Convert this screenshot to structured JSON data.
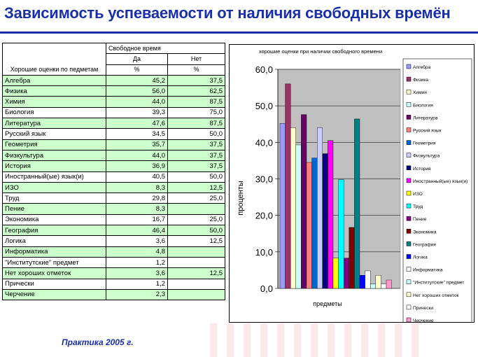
{
  "slide": {
    "title": "Зависимость успеваемости от наличия свободных времён",
    "footer": "Практика 2005 г."
  },
  "table": {
    "header_group": "Свободное время",
    "header_row_label": "Хорошие оценки по педметам",
    "col_yes": "Да",
    "col_no": "Нет",
    "unit": "%",
    "rows": [
      {
        "subject": "Алгебра",
        "yes": "45,2",
        "no": "37,5"
      },
      {
        "subject": "Физика",
        "yes": "56,0",
        "no": "62,5"
      },
      {
        "subject": "Химия",
        "yes": "44,0",
        "no": "87,5"
      },
      {
        "subject": "Биология",
        "yes": "39,3",
        "no": "75,0"
      },
      {
        "subject": "Литература",
        "yes": "47,6",
        "no": "87,5"
      },
      {
        "subject": "Русский язык",
        "yes": "34,5",
        "no": "50,0"
      },
      {
        "subject": "Геометрия",
        "yes": "35,7",
        "no": "37,5"
      },
      {
        "subject": "Физкультура",
        "yes": "44,0",
        "no": "37,5"
      },
      {
        "subject": "История",
        "yes": "36,9",
        "no": "37,5"
      },
      {
        "subject": "Иностранный(ые) язык(и)",
        "yes": "40,5",
        "no": "50,0"
      },
      {
        "subject": "ИЗО",
        "yes": "8,3",
        "no": "12,5"
      },
      {
        "subject": "Труд",
        "yes": "29,8",
        "no": "25,0"
      },
      {
        "subject": "Пение",
        "yes": "8,3",
        "no": ""
      },
      {
        "subject": "Экономика",
        "yes": "16,7",
        "no": "25,0"
      },
      {
        "subject": "География",
        "yes": "46,4",
        "no": "50,0"
      },
      {
        "subject": "Логика",
        "yes": "3,6",
        "no": "12,5"
      },
      {
        "subject": "Информатика",
        "yes": "4,8",
        "no": ""
      },
      {
        "subject": "\"Институтские\" предмет",
        "yes": "1,2",
        "no": ""
      },
      {
        "subject": "Нет хороших отметок",
        "yes": "3,6",
        "no": "12,5"
      },
      {
        "subject": "Прически",
        "yes": "1,2",
        "no": ""
      },
      {
        "subject": "Черчение",
        "yes": "2,3",
        "no": ""
      }
    ]
  },
  "chart_data": {
    "type": "bar",
    "title": "хорошие оценки при наличии свободного времени",
    "xlabel": "предметы",
    "ylabel": "проценты",
    "ylim": [
      0,
      60
    ],
    "yticks": [
      "0,0",
      "10,0",
      "20,0",
      "30,0",
      "40,0",
      "50,0",
      "60,0"
    ],
    "grid": true,
    "legend_position": "right",
    "series": [
      {
        "name": "Алгебра",
        "value": 45.2,
        "color": "#9999ff"
      },
      {
        "name": "Физика",
        "value": 56.0,
        "color": "#993366"
      },
      {
        "name": "Химия",
        "value": 44.0,
        "color": "#ffffcc"
      },
      {
        "name": "Биология",
        "value": 39.3,
        "color": "#ccffff"
      },
      {
        "name": "Литература",
        "value": 47.6,
        "color": "#660066"
      },
      {
        "name": "Русский язык",
        "value": 34.5,
        "color": "#ff8080"
      },
      {
        "name": "Геометрия",
        "value": 35.7,
        "color": "#0066cc"
      },
      {
        "name": "Физкультура",
        "value": 44.0,
        "color": "#ccccff"
      },
      {
        "name": "История",
        "value": 36.9,
        "color": "#000080"
      },
      {
        "name": "Иностранный(ые) язык(и)",
        "value": 40.5,
        "color": "#ff00ff"
      },
      {
        "name": "ИЗО",
        "value": 8.3,
        "color": "#ffff00"
      },
      {
        "name": "Труд",
        "value": 29.8,
        "color": "#00ffff"
      },
      {
        "name": "Пение",
        "value": 8.3,
        "color": "#800080"
      },
      {
        "name": "Экономика",
        "value": 16.7,
        "color": "#800000"
      },
      {
        "name": "География",
        "value": 46.4,
        "color": "#008080"
      },
      {
        "name": "Логика",
        "value": 3.6,
        "color": "#0000ff"
      },
      {
        "name": "Информатика",
        "value": 4.8,
        "color": "#ffffff"
      },
      {
        "name": "\"Институтские\" предмет",
        "value": 1.2,
        "color": "#ccffff"
      },
      {
        "name": "Нет хороших отметок",
        "value": 3.6,
        "color": "#ffffcc"
      },
      {
        "name": "Прически",
        "value": 1.2,
        "color": "#ffffff"
      },
      {
        "name": "Черчение",
        "value": 2.3,
        "color": "#ff99cc"
      }
    ]
  }
}
